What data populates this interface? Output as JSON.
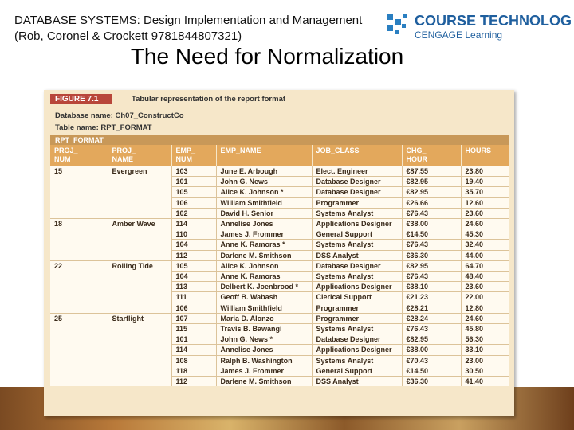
{
  "header": {
    "source": "DATABASE SYSTEMS: Design Implementation and Management (Rob, Coronel & Crockett 9781844807321)",
    "logo_main": "COURSE TECHNOLOGY",
    "logo_sub": "CENGAGE Learning"
  },
  "title": "The Need for Normalization",
  "figure": {
    "label": "FIGURE 7.1",
    "caption": "Tabular representation of the report format",
    "database_name": "Database name: Ch07_ConstructCo",
    "table_name": "Table name: RPT_FORMAT",
    "table_title": "RPT_FORMAT"
  },
  "table": {
    "columns": [
      "PROJ_ NUM",
      "PROJ_ NAME",
      "EMP_ NUM",
      "EMP_NAME",
      "JOB_CLASS",
      "CHG_ HOUR",
      "HOURS"
    ],
    "rows": [
      [
        "15",
        "Evergreen",
        "103",
        "June E. Arbough",
        "Elect. Engineer",
        "€87.55",
        "23.80"
      ],
      [
        null,
        null,
        "101",
        "John G. News",
        "Database Designer",
        "€82.95",
        "19.40"
      ],
      [
        null,
        null,
        "105",
        "Alice K. Johnson *",
        "Database Designer",
        "€82.95",
        "35.70"
      ],
      [
        null,
        null,
        "106",
        "William Smithfield",
        "Programmer",
        "€26.66",
        "12.60"
      ],
      [
        null,
        null,
        "102",
        "David H. Senior",
        "Systems Analyst",
        "€76.43",
        "23.60"
      ],
      [
        "18",
        "Amber Wave",
        "114",
        "Annelise Jones",
        "Applications Designer",
        "€38.00",
        "24.60"
      ],
      [
        null,
        null,
        "110",
        "James J. Frommer",
        "General Support",
        "€14.50",
        "45.30"
      ],
      [
        null,
        null,
        "104",
        "Anne K. Ramoras *",
        "Systems Analyst",
        "€76.43",
        "32.40"
      ],
      [
        null,
        null,
        "112",
        "Darlene M. Smithson",
        "DSS Analyst",
        "€36.30",
        "44.00"
      ],
      [
        "22",
        "Rolling Tide",
        "105",
        "Alice K. Johnson",
        "Database Designer",
        "€82.95",
        "64.70"
      ],
      [
        null,
        null,
        "104",
        "Anne K. Ramoras",
        "Systems Analyst",
        "€76.43",
        "48.40"
      ],
      [
        null,
        null,
        "113",
        "Delbert K. Joenbrood *",
        "Applications Designer",
        "€38.10",
        "23.60"
      ],
      [
        null,
        null,
        "111",
        "Geoff B. Wabash",
        "Clerical Support",
        "€21.23",
        "22.00"
      ],
      [
        null,
        null,
        "106",
        "William Smithfield",
        "Programmer",
        "€28.21",
        "12.80"
      ],
      [
        "25",
        "Starflight",
        "107",
        "Maria D. Alonzo",
        "Programmer",
        "€28.24",
        "24.60"
      ],
      [
        null,
        null,
        "115",
        "Travis B. Bawangi",
        "Systems Analyst",
        "€76.43",
        "45.80"
      ],
      [
        null,
        null,
        "101",
        "John G. News *",
        "Database Designer",
        "€82.95",
        "56.30"
      ],
      [
        null,
        null,
        "114",
        "Annelise Jones",
        "Applications Designer",
        "€38.00",
        "33.10"
      ],
      [
        null,
        null,
        "108",
        "Ralph B. Washington",
        "Systems Analyst",
        "€70.43",
        "23.00"
      ],
      [
        null,
        null,
        "118",
        "James J. Frommer",
        "General Support",
        "€14.50",
        "30.50"
      ],
      [
        null,
        null,
        "112",
        "Darlene M. Smithson",
        "DSS Analyst",
        "€36.30",
        "41.40"
      ]
    ]
  }
}
